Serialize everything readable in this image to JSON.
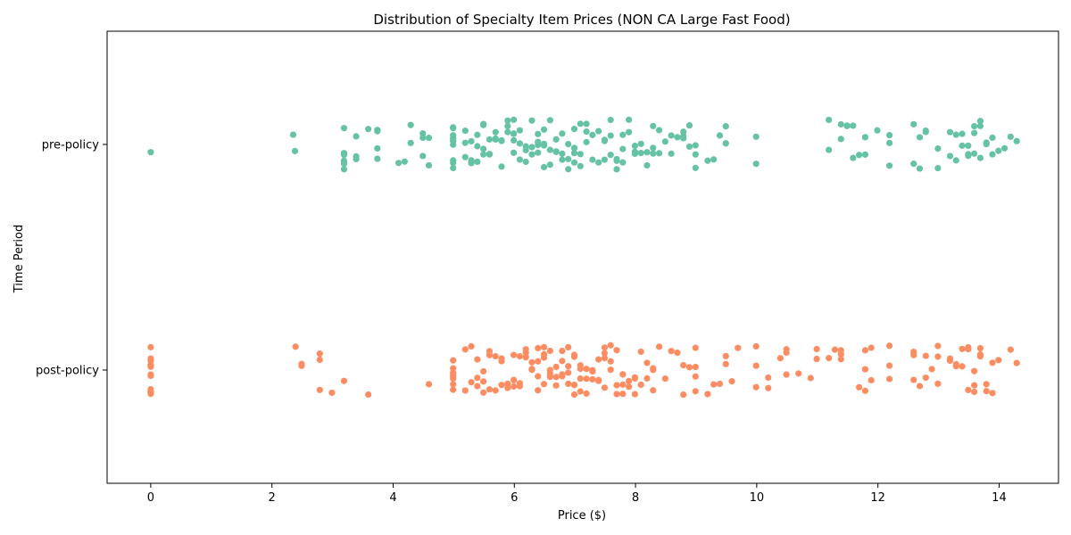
{
  "chart_data": {
    "type": "scatter",
    "subtype": "strip",
    "title": "Distribution of Specialty Item Prices (NON CA Large Fast Food)",
    "xlabel": "Price ($)",
    "ylabel": "Time Period",
    "xlim": [
      -0.72,
      14.98
    ],
    "xticks": [
      0,
      2,
      4,
      6,
      8,
      10,
      12,
      14
    ],
    "categories": [
      "pre-policy",
      "post-policy"
    ],
    "grid": false,
    "series": [
      {
        "name": "pre-policy",
        "color": "#66c2a5",
        "values": [
          0.0,
          2.35,
          2.38,
          3.19,
          3.19,
          3.19,
          3.19,
          3.19,
          3.19,
          3.19,
          3.39,
          3.39,
          3.39,
          3.59,
          3.74,
          3.74,
          3.74,
          3.74,
          4.09,
          4.19,
          4.29,
          4.29,
          4.49,
          4.49,
          4.49,
          4.59,
          4.59,
          4.99,
          4.99,
          4.99,
          4.99,
          4.99,
          4.99,
          4.99,
          4.99,
          4.99,
          4.99,
          5.19,
          5.19,
          5.19,
          5.29,
          5.29,
          5.29,
          5.39,
          5.39,
          5.39,
          5.49,
          5.49,
          5.49,
          5.49,
          5.59,
          5.59,
          5.59,
          5.69,
          5.69,
          5.69,
          5.79,
          5.79,
          5.79,
          5.89,
          5.89,
          5.89,
          5.99,
          5.99,
          5.99,
          5.99,
          5.99,
          6.09,
          6.09,
          6.09,
          6.19,
          6.19,
          6.19,
          6.29,
          6.29,
          6.29,
          6.39,
          6.39,
          6.39,
          6.39,
          6.49,
          6.49,
          6.49,
          6.49,
          6.59,
          6.59,
          6.59,
          6.69,
          6.69,
          6.69,
          6.79,
          6.79,
          6.79,
          6.89,
          6.89,
          6.89,
          6.99,
          6.99,
          6.99,
          6.99,
          6.99,
          7.09,
          7.09,
          7.09,
          7.19,
          7.19,
          7.19,
          7.29,
          7.29,
          7.39,
          7.39,
          7.49,
          7.49,
          7.49,
          7.59,
          7.59,
          7.59,
          7.69,
          7.69,
          7.69,
          7.79,
          7.79,
          7.79,
          7.89,
          7.89,
          7.99,
          7.99,
          7.99,
          8.09,
          8.09,
          8.19,
          8.19,
          8.29,
          8.29,
          8.29,
          8.39,
          8.39,
          8.49,
          8.59,
          8.59,
          8.69,
          8.79,
          8.79,
          8.79,
          8.89,
          8.89,
          8.99,
          8.99,
          8.99,
          9.19,
          9.29,
          9.39,
          9.49,
          9.49,
          9.49,
          9.99,
          9.99,
          11.19,
          11.19,
          11.39,
          11.39,
          11.49,
          11.49,
          11.59,
          11.59,
          11.69,
          11.79,
          11.79,
          11.99,
          12.19,
          12.19,
          12.19,
          12.59,
          12.59,
          12.69,
          12.69,
          12.79,
          12.79,
          12.99,
          12.99,
          13.19,
          13.19,
          13.29,
          13.29,
          13.39,
          13.39,
          13.49,
          13.49,
          13.49,
          13.59,
          13.59,
          13.59,
          13.69,
          13.69,
          13.69,
          13.79,
          13.79,
          13.89,
          13.89,
          13.99,
          14.09,
          14.19,
          14.29
        ]
      },
      {
        "name": "post-policy",
        "color": "#fc8d62",
        "values": [
          0.0,
          0.0,
          0.0,
          0.0,
          0.0,
          0.0,
          0.0,
          0.0,
          0.0,
          0.0,
          0.0,
          0.0,
          0.0,
          0.0,
          2.39,
          2.49,
          2.49,
          2.79,
          2.79,
          2.79,
          2.99,
          3.19,
          3.59,
          4.59,
          4.99,
          4.99,
          4.99,
          4.99,
          4.99,
          4.99,
          4.99,
          4.99,
          5.19,
          5.19,
          5.29,
          5.29,
          5.39,
          5.39,
          5.39,
          5.49,
          5.49,
          5.49,
          5.59,
          5.59,
          5.59,
          5.69,
          5.69,
          5.79,
          5.79,
          5.79,
          5.89,
          5.89,
          5.99,
          5.99,
          5.99,
          5.99,
          6.09,
          6.09,
          6.09,
          6.19,
          6.19,
          6.19,
          6.29,
          6.29,
          6.29,
          6.39,
          6.39,
          6.39,
          6.39,
          6.49,
          6.49,
          6.49,
          6.49,
          6.59,
          6.59,
          6.59,
          6.59,
          6.69,
          6.69,
          6.69,
          6.79,
          6.79,
          6.79,
          6.79,
          6.89,
          6.89,
          6.89,
          6.89,
          6.99,
          6.99,
          6.99,
          6.99,
          6.99,
          7.09,
          7.09,
          7.09,
          7.09,
          7.19,
          7.19,
          7.19,
          7.29,
          7.29,
          7.29,
          7.39,
          7.39,
          7.39,
          7.49,
          7.49,
          7.49,
          7.49,
          7.59,
          7.59,
          7.59,
          7.69,
          7.69,
          7.69,
          7.79,
          7.79,
          7.79,
          7.89,
          7.89,
          7.99,
          7.99,
          7.99,
          8.09,
          8.09,
          8.19,
          8.19,
          8.29,
          8.29,
          8.29,
          8.39,
          8.49,
          8.59,
          8.69,
          8.79,
          8.79,
          8.89,
          8.99,
          8.99,
          8.99,
          8.99,
          9.19,
          9.29,
          9.39,
          9.49,
          9.49,
          9.59,
          9.69,
          9.99,
          9.99,
          9.99,
          10.19,
          10.19,
          10.39,
          10.49,
          10.49,
          10.49,
          10.69,
          10.89,
          10.99,
          10.99,
          11.19,
          11.29,
          11.39,
          11.39,
          11.39,
          11.69,
          11.79,
          11.79,
          11.79,
          11.89,
          11.89,
          12.19,
          12.19,
          12.19,
          12.59,
          12.59,
          12.59,
          12.69,
          12.79,
          12.79,
          12.89,
          12.99,
          12.99,
          12.99,
          13.19,
          13.19,
          13.29,
          13.29,
          13.39,
          13.39,
          13.49,
          13.49,
          13.49,
          13.59,
          13.59,
          13.59,
          13.69,
          13.69,
          13.69,
          13.79,
          13.79,
          13.89,
          13.89,
          13.99,
          14.19,
          14.29
        ]
      }
    ]
  }
}
